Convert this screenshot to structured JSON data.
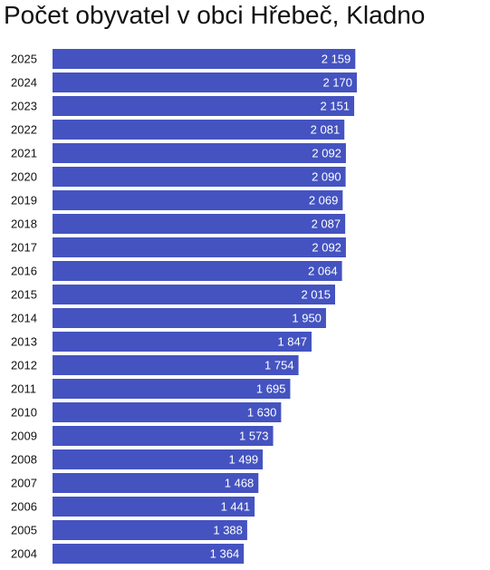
{
  "title": "Počet obyvatel v obci Hřebeč, Kladno",
  "colors": {
    "bar": "#4453c0",
    "value_text": "#ffffff",
    "label_text": "#111111"
  },
  "chart_data": {
    "type": "bar",
    "orientation": "horizontal",
    "title": "Počet obyvatel v obci Hřebeč, Kladno",
    "xlabel": "",
    "ylabel": "",
    "xlim": [
      0,
      2170
    ],
    "grid": false,
    "categories": [
      "2025",
      "2024",
      "2023",
      "2022",
      "2021",
      "2020",
      "2019",
      "2018",
      "2017",
      "2016",
      "2015",
      "2014",
      "2013",
      "2012",
      "2011",
      "2010",
      "2009",
      "2008",
      "2007",
      "2006",
      "2005",
      "2004"
    ],
    "values": [
      2159,
      2170,
      2151,
      2081,
      2092,
      2090,
      2069,
      2087,
      2092,
      2064,
      2015,
      1950,
      1847,
      1754,
      1695,
      1630,
      1573,
      1499,
      1468,
      1441,
      1388,
      1364
    ],
    "value_labels": [
      "2 159",
      "2 170",
      "2 151",
      "2 081",
      "2 092",
      "2 090",
      "2 069",
      "2 087",
      "2 092",
      "2 064",
      "2 015",
      "1 950",
      "1 847",
      "1 754",
      "1 695",
      "1 630",
      "1 573",
      "1 499",
      "1 468",
      "1 441",
      "1 388",
      "1 364"
    ]
  }
}
